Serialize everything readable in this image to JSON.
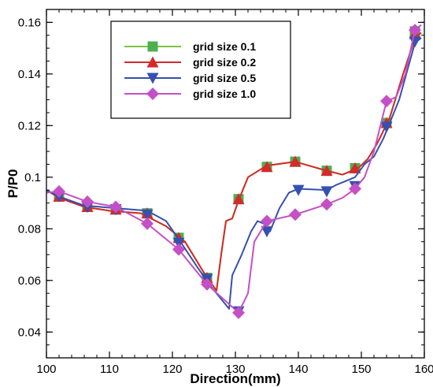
{
  "chart_data": {
    "type": "line",
    "xlabel": "Direction(mm)",
    "ylabel": "P/P0",
    "xlim": [
      100,
      160
    ],
    "ylim": [
      0.03,
      0.165
    ],
    "xticks": [
      100,
      110,
      120,
      130,
      140,
      150,
      160
    ],
    "yticks": [
      0.04,
      0.06,
      0.08,
      0.1,
      0.12,
      0.14,
      0.16
    ],
    "ytick_labels": [
      "0.04",
      "0.06",
      "0.08",
      "0.1",
      "0.12",
      "0.14",
      "0.16"
    ],
    "grid": false,
    "legend_position": "top-center",
    "series": [
      {
        "name": "grid size 0.1",
        "color": "#7dc242",
        "marker": "square",
        "marker_color": "#4cb050",
        "x": [
          100,
          102,
          106,
          110,
          115,
          119,
          122,
          125,
          127,
          127.8,
          128.5,
          129.5,
          130.5,
          132,
          135,
          139.5,
          144.5,
          147,
          149.5,
          151,
          152.5,
          154.5,
          156.5,
          158.5,
          159.5
        ],
        "y": [
          0.095,
          0.092,
          0.0885,
          0.087,
          0.086,
          0.081,
          0.075,
          0.063,
          0.056,
          0.071,
          0.083,
          0.084,
          0.091,
          0.1,
          0.1045,
          0.106,
          0.1025,
          0.101,
          0.1035,
          0.107,
          0.113,
          0.123,
          0.139,
          0.154,
          0.156
        ],
        "marker_x": [
          102,
          106.5,
          111,
          116,
          121,
          125.5,
          130.5,
          135,
          139.5,
          144.5,
          149,
          154,
          158.5
        ],
        "marker_y": [
          0.0925,
          0.0885,
          0.0875,
          0.086,
          0.0765,
          0.061,
          0.0915,
          0.104,
          0.106,
          0.1025,
          0.1035,
          0.121,
          0.1565
        ]
      },
      {
        "name": "grid size 0.2",
        "color": "#d42a2a",
        "marker": "triangle-up",
        "marker_color": "#d42a2a",
        "x": [
          100,
          102,
          106,
          110,
          115,
          119,
          122,
          125,
          127,
          127.8,
          128.5,
          129.5,
          130.5,
          132,
          135,
          139.5,
          144.5,
          147,
          149.5,
          151,
          152.5,
          154.5,
          156.5,
          158.5,
          159.5
        ],
        "y": [
          0.095,
          0.092,
          0.0885,
          0.087,
          0.086,
          0.081,
          0.075,
          0.063,
          0.056,
          0.071,
          0.083,
          0.084,
          0.091,
          0.1,
          0.1045,
          0.106,
          0.1025,
          0.101,
          0.1035,
          0.107,
          0.113,
          0.123,
          0.139,
          0.154,
          0.156
        ],
        "marker_x": [
          102,
          106.5,
          111,
          116,
          121,
          125.5,
          130.5,
          135,
          139.5,
          144.5,
          149,
          154,
          158.5
        ],
        "marker_y": [
          0.0925,
          0.0885,
          0.0875,
          0.086,
          0.0765,
          0.061,
          0.0915,
          0.104,
          0.106,
          0.1025,
          0.1035,
          0.121,
          0.1555
        ]
      },
      {
        "name": "grid size 0.5",
        "color": "#3550b0",
        "marker": "triangle-down",
        "marker_color": "#3550b0",
        "x": [
          100,
          102,
          106,
          111,
          116,
          119,
          121,
          124,
          126,
          129,
          129.5,
          131,
          132.5,
          133.5,
          134.5,
          135.5,
          137,
          138.5,
          140,
          144.5,
          146,
          149,
          150.5,
          152,
          153.5,
          156,
          158.5,
          159.5
        ],
        "y": [
          0.095,
          0.0925,
          0.089,
          0.088,
          0.087,
          0.083,
          0.076,
          0.065,
          0.058,
          0.049,
          0.062,
          0.07,
          0.079,
          0.083,
          0.082,
          0.079,
          0.088,
          0.094,
          0.0955,
          0.095,
          0.097,
          0.1,
          0.105,
          0.108,
          0.115,
          0.13,
          0.152,
          0.154
        ],
        "marker_x": [
          102,
          106.5,
          111,
          116,
          121,
          125.5,
          130.5,
          135,
          140,
          144.5,
          149,
          154,
          158.5
        ],
        "marker_y": [
          0.0925,
          0.0885,
          0.0875,
          0.0855,
          0.0745,
          0.0605,
          0.048,
          0.079,
          0.095,
          0.0945,
          0.0965,
          0.1195,
          0.1525
        ]
      },
      {
        "name": "grid size 1.0",
        "color": "#c54fc6",
        "marker": "diamond",
        "marker_color": "#c54fc6",
        "x": [
          100,
          102,
          106.5,
          111,
          116,
          121,
          125.5,
          130.5,
          132,
          133,
          135,
          139.5,
          144.5,
          147,
          149,
          150.5,
          152,
          154,
          155.5,
          157,
          158.5,
          159.5
        ],
        "y": [
          0.094,
          0.0945,
          0.0905,
          0.0885,
          0.082,
          0.072,
          0.0585,
          0.0475,
          0.055,
          0.075,
          0.083,
          0.0855,
          0.0895,
          0.092,
          0.0955,
          0.1,
          0.11,
          0.1295,
          0.131,
          0.14,
          0.157,
          0.159
        ],
        "marker_x": [
          102,
          106.5,
          111,
          116,
          121,
          125.5,
          130.5,
          135,
          139.5,
          144.5,
          149,
          154,
          158.5
        ],
        "marker_y": [
          0.0945,
          0.0905,
          0.0885,
          0.082,
          0.072,
          0.0585,
          0.0475,
          0.083,
          0.0855,
          0.0895,
          0.0955,
          0.1295,
          0.157
        ]
      }
    ]
  }
}
